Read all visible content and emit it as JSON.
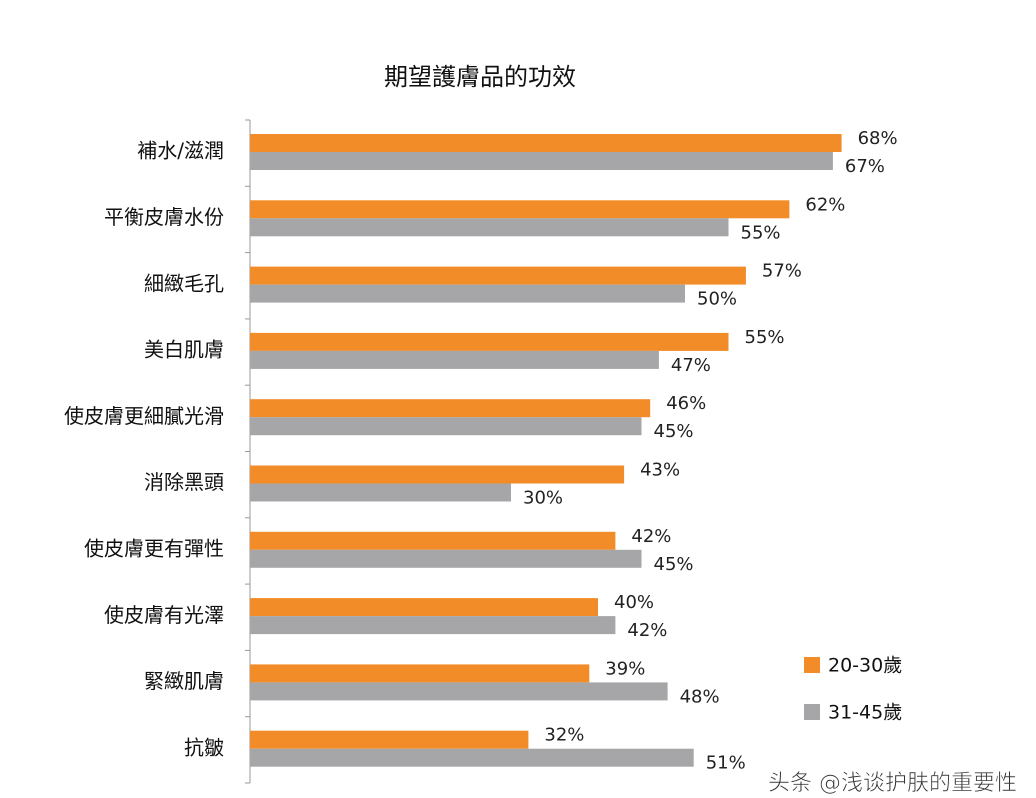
{
  "chart_data": {
    "type": "bar",
    "orientation": "horizontal",
    "title": "期望護膚品的功效",
    "categories": [
      "補水/滋潤",
      "平衡皮膚水份",
      "細緻毛孔",
      "美白肌膚",
      "使皮膚更細膩光滑",
      "消除黑頭",
      "使皮膚更有彈性",
      "使皮膚有光澤",
      "緊緻肌膚",
      "抗皺"
    ],
    "series": [
      {
        "name": "20-30歲",
        "color": "#f28c28",
        "values": [
          68,
          62,
          57,
          55,
          46,
          43,
          42,
          40,
          39,
          32
        ]
      },
      {
        "name": "31-45歲",
        "color": "#a6a6a8",
        "values": [
          67,
          55,
          50,
          47,
          45,
          30,
          45,
          42,
          48,
          51
        ]
      }
    ],
    "value_suffix": "%",
    "xlim": [
      0,
      100
    ],
    "grid": false,
    "legend": "bottom-right"
  },
  "watermark": "头条 @浅谈护肤的重要性"
}
